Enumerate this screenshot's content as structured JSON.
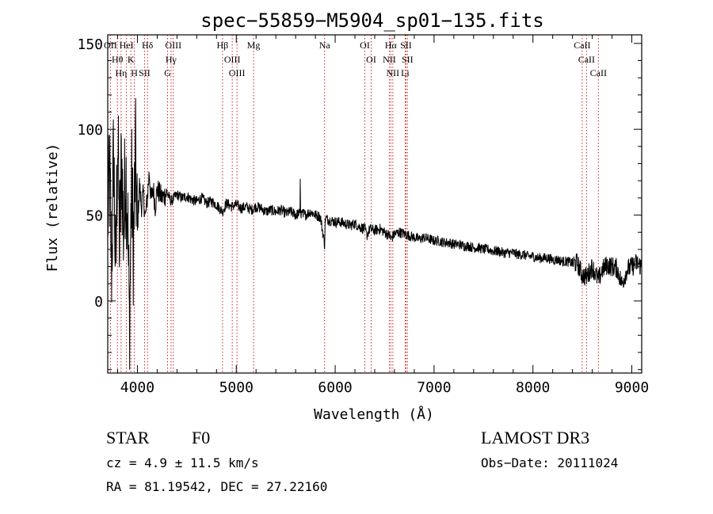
{
  "chart_data": {
    "type": "line",
    "title": "spec−55859−M5904_sp01−135.fits",
    "xlabel": "Wavelength (Å)",
    "ylabel": "Flux (relative)",
    "xlim": [
      3700,
      9100
    ],
    "ylim": [
      -42,
      155
    ],
    "x_ticks": [
      4000,
      5000,
      6000,
      7000,
      8000,
      9000
    ],
    "y_ticks": [
      0,
      50,
      100,
      150
    ],
    "grid": false,
    "series": [
      {
        "name": "flux",
        "x": [
          3700,
          3720,
          3740,
          3760,
          3780,
          3800,
          3820,
          3840,
          3860,
          3880,
          3900,
          3920,
          3940,
          3960,
          3980,
          4000,
          4020,
          4040,
          4060,
          4080,
          4100,
          4120,
          4140,
          4160,
          4180,
          4200,
          4250,
          4300,
          4340,
          4400,
          4450,
          4500,
          4550,
          4600,
          4650,
          4700,
          4750,
          4800,
          4861,
          4900,
          4950,
          5000,
          5050,
          5100,
          5150,
          5200,
          5250,
          5300,
          5350,
          5400,
          5450,
          5500,
          5550,
          5600,
          5650,
          5700,
          5750,
          5800,
          5850,
          5893,
          5900,
          5950,
          6000,
          6050,
          6100,
          6150,
          6200,
          6250,
          6300,
          6320,
          6350,
          6400,
          6450,
          6500,
          6550,
          6563,
          6600,
          6650,
          6700,
          6750,
          6800,
          6850,
          6900,
          6950,
          7000,
          7050,
          7100,
          7150,
          7200,
          7250,
          7300,
          7350,
          7400,
          7450,
          7500,
          7550,
          7600,
          7650,
          7700,
          7750,
          7800,
          7850,
          7900,
          7950,
          8000,
          8050,
          8100,
          8150,
          8200,
          8250,
          8300,
          8350,
          8400,
          8450,
          8498,
          8542,
          8600,
          8662,
          8700,
          8750,
          8800,
          8850,
          8900,
          8950,
          9000,
          9050,
          9100
        ],
        "values": [
          50,
          70,
          20,
          90,
          10,
          100,
          30,
          85,
          40,
          78,
          55,
          -20,
          72,
          30,
          85,
          40,
          68,
          55,
          62,
          48,
          60,
          75,
          58,
          66,
          55,
          65,
          60,
          63,
          58,
          62,
          60,
          61,
          59,
          58,
          60,
          57,
          58,
          56,
          52,
          57,
          55,
          56,
          54,
          55,
          53,
          55,
          54,
          52,
          53,
          52,
          53,
          51,
          52,
          50,
          51,
          50,
          52,
          50,
          49,
          33,
          48,
          47,
          46,
          46,
          45,
          44,
          45,
          43,
          42,
          38,
          42,
          41,
          42,
          40,
          38,
          36,
          39,
          40,
          39,
          38,
          37,
          36,
          37,
          36,
          35,
          35,
          34,
          34,
          33,
          33,
          32,
          32,
          31,
          31,
          30,
          30,
          29,
          29,
          28,
          28,
          28,
          27,
          27,
          26,
          26,
          25,
          25,
          25,
          24,
          24,
          23,
          23,
          22,
          22,
          15,
          14,
          20,
          12,
          18,
          21,
          20,
          19,
          10,
          18,
          20,
          22,
          20
        ]
      }
    ],
    "line_marks": [
      {
        "label": "OII",
        "wl": 3727
      },
      {
        "label": "Hθ",
        "wl": 3798
      },
      {
        "label": "Hη",
        "wl": 3835
      },
      {
        "label": "HeI",
        "wl": 3889
      },
      {
        "label": "K",
        "wl": 3934
      },
      {
        "label": "H",
        "wl": 3969
      },
      {
        "label": "Hδ",
        "wl": 4102
      },
      {
        "label": "SII",
        "wl": 4072
      },
      {
        "label": "OIII",
        "wl": 4363
      },
      {
        "label": "Hγ",
        "wl": 4340
      },
      {
        "label": "G",
        "wl": 4305
      },
      {
        "label": "Hβ",
        "wl": 4861
      },
      {
        "label": "OIII",
        "wl": 4959
      },
      {
        "label": "OIII",
        "wl": 5007
      },
      {
        "label": "Mg",
        "wl": 5175
      },
      {
        "label": "Na",
        "wl": 5893
      },
      {
        "label": "OI",
        "wl": 6300
      },
      {
        "label": "OI",
        "wl": 6364
      },
      {
        "label": "Hα",
        "wl": 6563
      },
      {
        "label": "NII",
        "wl": 6548
      },
      {
        "label": "NII",
        "wl": 6583
      },
      {
        "label": "SII",
        "wl": 6716
      },
      {
        "label": "SII",
        "wl": 6731
      },
      {
        "label": "Li",
        "wl": 6708
      },
      {
        "label": "CaII",
        "wl": 8498
      },
      {
        "label": "CaII",
        "wl": 8542
      },
      {
        "label": "CaII",
        "wl": 8662
      }
    ]
  },
  "info": {
    "class": "STAR",
    "subclass": "F0",
    "survey": "LAMOST DR3",
    "cz": "cz = 4.9 ± 11.5 km/s",
    "obs_date": "Obs−Date: 20111024",
    "coords": "RA =  81.19542, DEC =  27.22160"
  }
}
